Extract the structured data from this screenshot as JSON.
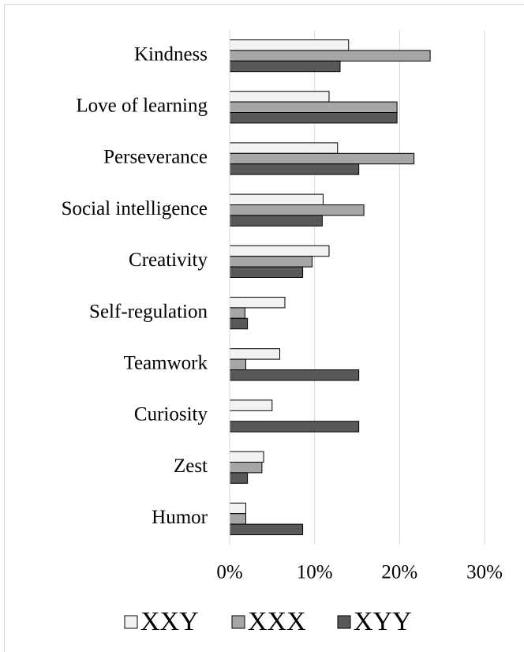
{
  "chart_data": {
    "type": "bar",
    "orientation": "horizontal",
    "categories": [
      "Kindness",
      "Love of learning",
      "Perseverance",
      "Social intelligence",
      "Creativity",
      "Self-regulation",
      "Teamwork",
      "Curiosity",
      "Zest",
      "Humor"
    ],
    "series": [
      {
        "name": "XXY",
        "color": "#f2f2f2",
        "values": [
          14.0,
          11.7,
          12.7,
          11.0,
          11.7,
          6.5,
          5.9,
          5.0,
          4.0,
          1.9
        ]
      },
      {
        "name": "XXX",
        "color": "#a6a6a6",
        "values": [
          23.6,
          19.7,
          21.7,
          15.8,
          9.7,
          1.8,
          1.9,
          0,
          3.8,
          1.9
        ]
      },
      {
        "name": "XYY",
        "color": "#595959",
        "values": [
          13.0,
          19.7,
          15.2,
          10.9,
          8.6,
          2.1,
          15.2,
          15.2,
          2.1,
          8.6
        ]
      }
    ],
    "xlim": [
      0,
      30
    ],
    "xticks": [
      {
        "value": 0,
        "label": "0%"
      },
      {
        "value": 10,
        "label": "10%"
      },
      {
        "value": 20,
        "label": "20%"
      },
      {
        "value": 30,
        "label": "30%"
      }
    ],
    "grid": true,
    "legend": "bottom"
  }
}
